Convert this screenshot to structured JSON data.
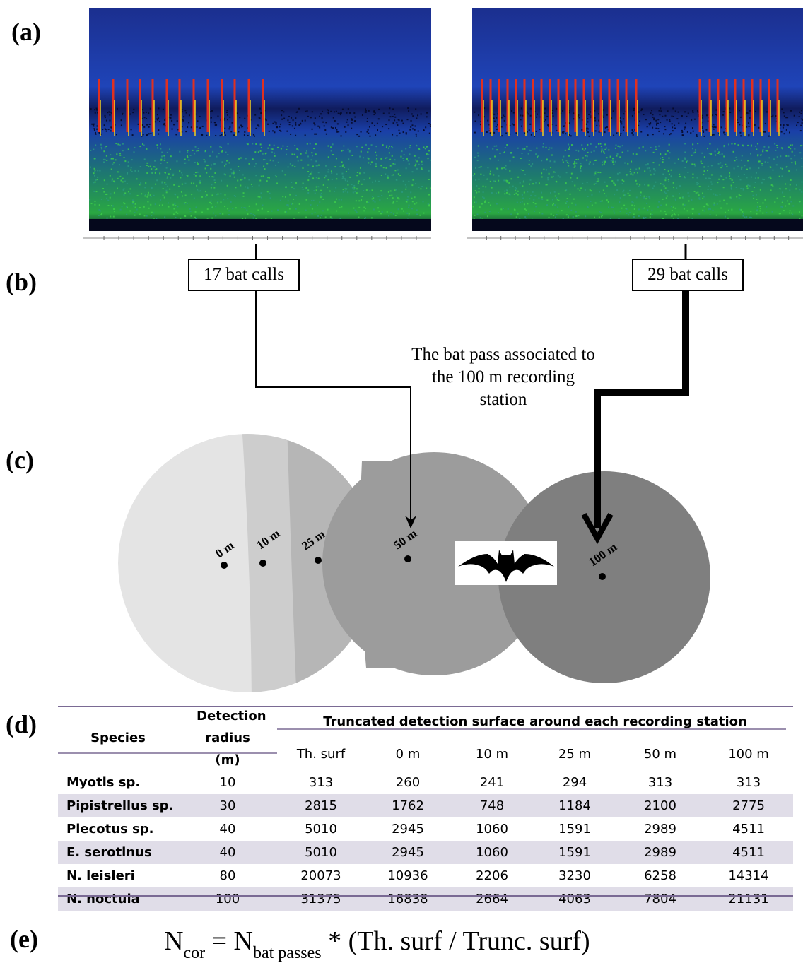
{
  "panels": {
    "a": "(a)",
    "b": "(b)",
    "c": "(c)",
    "d": "(d)",
    "e": "(e)"
  },
  "spectrograms": {
    "left": {
      "call_count_label": "17 bat calls"
    },
    "right": {
      "call_count_label": "29 bat calls"
    }
  },
  "annotation": "The bat pass associated to the 100 m recording station",
  "stations": [
    "0 m",
    "10 m",
    "25 m",
    "50 m",
    "100 m"
  ],
  "zone_colors": [
    "#e6e6e6",
    "#cfcfcf",
    "#b4b4b4",
    "#9b9b9b",
    "#7d7d7d"
  ],
  "table": {
    "col_species": "Species",
    "col_radius": "Detection radius (m)",
    "group_header": "Truncated detection surface around each recording station",
    "sub_headers": [
      "Th. surf",
      "0 m",
      "10 m",
      "25 m",
      "50 m",
      "100 m"
    ],
    "rows": [
      {
        "species": "Myotis sp.",
        "radius": "10",
        "values": [
          "313",
          "260",
          "241",
          "294",
          "313",
          "313"
        ]
      },
      {
        "species": "Pipistrellus sp.",
        "radius": "30",
        "values": [
          "2815",
          "1762",
          "748",
          "1184",
          "2100",
          "2775"
        ]
      },
      {
        "species": "Plecotus sp.",
        "radius": "40",
        "values": [
          "5010",
          "2945",
          "1060",
          "1591",
          "2989",
          "4511"
        ]
      },
      {
        "species": "E. serotinus",
        "radius": "40",
        "values": [
          "5010",
          "2945",
          "1060",
          "1591",
          "2989",
          "4511"
        ]
      },
      {
        "species": "N. leisleri",
        "radius": "80",
        "values": [
          "20073",
          "10936",
          "2206",
          "3230",
          "6258",
          "14314"
        ]
      },
      {
        "species": "N. noctula",
        "radius": "100",
        "values": [
          "31375",
          "16838",
          "2664",
          "4063",
          "7804",
          "21131"
        ]
      }
    ]
  },
  "formula": {
    "n1": "N",
    "sub1": "cor",
    "eq": " = N",
    "sub2": "bat passes",
    "rest": " * (Th. surf / Trunc. surf)"
  }
}
